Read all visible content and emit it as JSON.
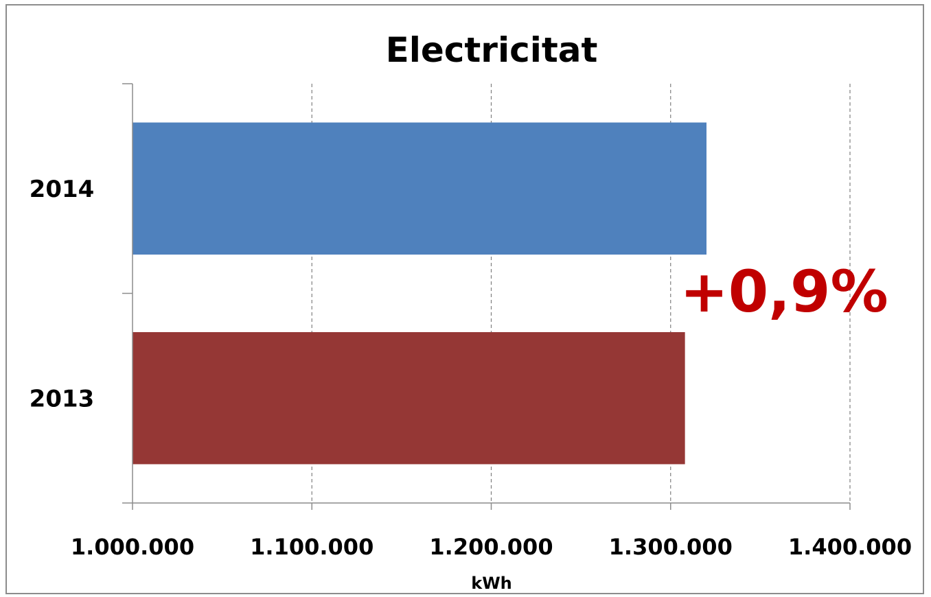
{
  "chart_data": {
    "type": "bar",
    "orientation": "horizontal",
    "title": "Electricitat",
    "xlabel": "kWh",
    "ylabel": "",
    "categories": [
      "2014",
      "2013"
    ],
    "values": [
      1320000,
      1308000
    ],
    "bar_colors": [
      "#4f81bd",
      "#953735"
    ],
    "xlim": [
      1000000,
      1400000
    ],
    "ticks": [
      1000000,
      1100000,
      1200000,
      1300000,
      1400000
    ],
    "tick_labels": [
      "1.000.000",
      "1.100.000",
      "1.200.000",
      "1.300.000",
      "1.400.000"
    ],
    "grid": true,
    "grid_style": "dashed",
    "legend": "none",
    "annotation": {
      "text": "+0,9%",
      "color": "#c00000"
    }
  }
}
